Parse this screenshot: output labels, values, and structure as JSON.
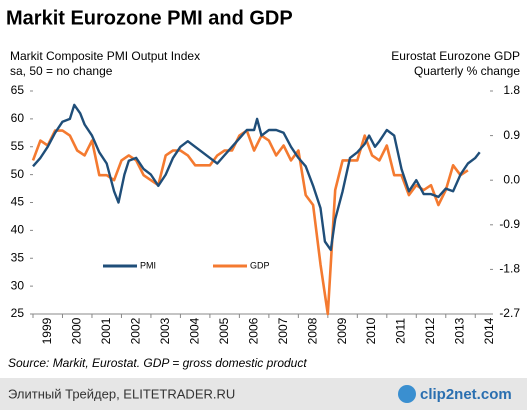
{
  "chart_data": {
    "type": "line",
    "title": "Markit Eurozone PMI and GDP",
    "subtitle_left": [
      "Markit Composite PMI Output Index",
      "sa, 50 = no change"
    ],
    "subtitle_right": [
      "Eurostat Eurozone GDP",
      "Quarterly % change"
    ],
    "source": "Source: Markit, Eurostat. GDP = gross domestic product",
    "xlim": [
      1999,
      2014.5
    ],
    "xticks": [
      {
        "value": 1999,
        "label": "1999"
      },
      {
        "value": 2000,
        "label": "2000"
      },
      {
        "value": 2001,
        "label": "2001"
      },
      {
        "value": 2002,
        "label": "2002"
      },
      {
        "value": 2003,
        "label": "2003"
      },
      {
        "value": 2004,
        "label": "2004"
      },
      {
        "value": 2005,
        "label": "2005"
      },
      {
        "value": 2006,
        "label": "2006"
      },
      {
        "value": 2007,
        "label": "2007"
      },
      {
        "value": 2008,
        "label": "2008"
      },
      {
        "value": 2009,
        "label": "2009"
      },
      {
        "value": 2010,
        "label": "2010"
      },
      {
        "value": 2011,
        "label": "2011"
      },
      {
        "value": 2012,
        "label": "2012"
      },
      {
        "value": 2013,
        "label": "2013"
      },
      {
        "value": 2014,
        "label": "2014"
      }
    ],
    "ylim": [
      25,
      65
    ],
    "yticks": [
      25,
      30,
      35,
      40,
      45,
      50,
      55,
      60,
      65
    ],
    "y2lim": [
      -2.7,
      1.8
    ],
    "y2ticks": [
      -2.7,
      -1.8,
      -0.9,
      {
        "value": 0,
        "label": "0.0"
      },
      0.9,
      1.8
    ],
    "legend": "lower left",
    "series": [
      {
        "name": "PMI",
        "color": "#1f4e79",
        "x": [
          1999.0,
          1999.25,
          1999.5,
          1999.75,
          2000.0,
          2000.25,
          2000.4,
          2000.6,
          2000.75,
          2001.0,
          2001.25,
          2001.5,
          2001.75,
          2001.9,
          2002.1,
          2002.25,
          2002.5,
          2002.75,
          2003.0,
          2003.25,
          2003.5,
          2003.75,
          2004.0,
          2004.25,
          2004.5,
          2004.75,
          2005.0,
          2005.25,
          2005.5,
          2005.75,
          2006.0,
          2006.25,
          2006.5,
          2006.6,
          2006.75,
          2007.0,
          2007.25,
          2007.5,
          2007.75,
          2008.0,
          2008.25,
          2008.5,
          2008.75,
          2008.9,
          2009.1,
          2009.25,
          2009.5,
          2009.75,
          2010.0,
          2010.25,
          2010.4,
          2010.6,
          2010.75,
          2011.0,
          2011.25,
          2011.5,
          2011.75,
          2012.0,
          2012.25,
          2012.5,
          2012.75,
          2013.0,
          2013.25,
          2013.5,
          2013.75,
          2014.0,
          2014.15
        ],
        "values": [
          51.5,
          53,
          55,
          57.5,
          59.5,
          60,
          62.5,
          61,
          59,
          57,
          54,
          52,
          47,
          45,
          50,
          52.5,
          53,
          51,
          50,
          48,
          50,
          53,
          55,
          56,
          55,
          54,
          53,
          52,
          53.5,
          55,
          56.5,
          58,
          58,
          60,
          57,
          58,
          58,
          57.5,
          55,
          53,
          51.5,
          48,
          44,
          38,
          36.5,
          42,
          47,
          53,
          54,
          55.5,
          57,
          55,
          56,
          58,
          57,
          51,
          47,
          49,
          46.5,
          46.5,
          46,
          47.5,
          47,
          50,
          52,
          53,
          54
        ]
      },
      {
        "name": "GDP",
        "color": "#f47a30",
        "axis": "y2",
        "x": [
          1999.0,
          1999.25,
          1999.5,
          1999.75,
          2000.0,
          2000.25,
          2000.5,
          2000.75,
          2001.0,
          2001.25,
          2001.5,
          2001.75,
          2002.0,
          2002.25,
          2002.5,
          2002.75,
          2003.0,
          2003.25,
          2003.5,
          2003.75,
          2004.0,
          2004.25,
          2004.5,
          2004.75,
          2005.0,
          2005.25,
          2005.5,
          2005.75,
          2006.0,
          2006.25,
          2006.5,
          2006.75,
          2007.0,
          2007.25,
          2007.5,
          2007.75,
          2008.0,
          2008.25,
          2008.5,
          2008.75,
          2009.0,
          2009.25,
          2009.5,
          2009.75,
          2010.0,
          2010.25,
          2010.5,
          2010.75,
          2011.0,
          2011.25,
          2011.5,
          2011.75,
          2012.0,
          2012.25,
          2012.5,
          2012.75,
          2013.0,
          2013.25,
          2013.5,
          2013.75
        ],
        "values": [
          0.4,
          0.8,
          0.7,
          1.0,
          1.0,
          0.9,
          0.6,
          0.5,
          0.8,
          0.1,
          0.1,
          0.0,
          0.4,
          0.5,
          0.4,
          0.1,
          0.0,
          -0.1,
          0.5,
          0.6,
          0.6,
          0.5,
          0.3,
          0.3,
          0.3,
          0.5,
          0.6,
          0.6,
          0.9,
          1.0,
          0.6,
          0.9,
          0.8,
          0.5,
          0.7,
          0.4,
          0.6,
          -0.3,
          -0.5,
          -1.7,
          -2.7,
          -0.2,
          0.4,
          0.4,
          0.4,
          0.9,
          0.5,
          0.4,
          0.7,
          0.1,
          0.1,
          -0.3,
          -0.1,
          -0.2,
          -0.1,
          -0.5,
          -0.2,
          0.3,
          0.1,
          0.2
        ]
      }
    ]
  },
  "footer": {
    "left": "Элитный Трейдер, ELITETRADER.RU",
    "right": "clip2net.com"
  }
}
